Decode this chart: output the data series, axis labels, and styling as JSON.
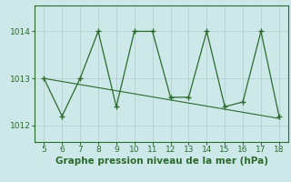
{
  "x": [
    5,
    6,
    7,
    8,
    9,
    10,
    11,
    12,
    13,
    14,
    15,
    16,
    17,
    18
  ],
  "y": [
    1013.0,
    1012.2,
    1013.0,
    1014.0,
    1012.4,
    1014.0,
    1014.0,
    1012.6,
    1012.6,
    1014.0,
    1012.4,
    1012.5,
    1014.0,
    1012.2
  ],
  "trend_x": [
    5,
    18
  ],
  "trend_y": [
    1013.0,
    1012.15
  ],
  "color": "#2d6a2d",
  "bg_color": "#cce8e8",
  "xlabel": "Graphe pression niveau de la mer (hPa)",
  "xlim": [
    4.5,
    18.5
  ],
  "ylim": [
    1011.65,
    1014.55
  ],
  "yticks": [
    1012,
    1013,
    1014
  ],
  "xticks": [
    5,
    6,
    7,
    8,
    9,
    10,
    11,
    12,
    13,
    14,
    15,
    16,
    17,
    18
  ],
  "grid_color": "#b0cccc",
  "tick_fontsize": 6.5,
  "xlabel_fontsize": 7.5
}
